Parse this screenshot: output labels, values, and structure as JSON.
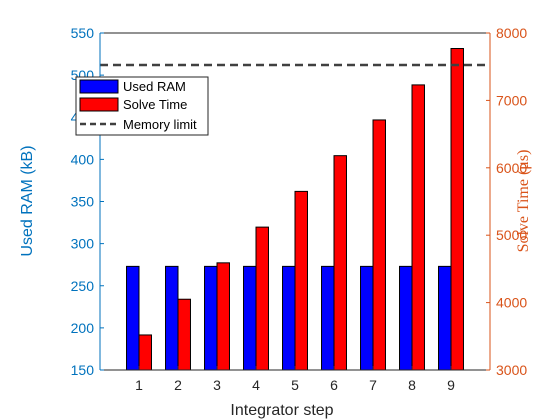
{
  "chart_data": {
    "type": "bar",
    "categories": [
      "1",
      "2",
      "3",
      "4",
      "5",
      "6",
      "7",
      "8",
      "9"
    ],
    "xlabel": "Integrator step",
    "ylabel_left": "Used RAM (kB)",
    "ylabel_right": "Solve Time (μs)",
    "ylim_left": [
      150,
      550
    ],
    "ylim_right": [
      3000,
      8000
    ],
    "yticks_left": [
      "150",
      "200",
      "250",
      "300",
      "350",
      "400",
      "450",
      "500",
      "550"
    ],
    "yticks_right": [
      "3000",
      "4000",
      "5000",
      "6000",
      "7000",
      "8000"
    ],
    "grid": false,
    "legend_position": "top-left",
    "series": [
      {
        "name": "Used RAM",
        "axis": "left",
        "color": "#0000ff",
        "values": [
          273,
          273,
          273,
          273,
          273,
          273,
          273,
          273,
          273
        ]
      },
      {
        "name": "Solve Time",
        "axis": "right",
        "color": "#ff0000",
        "values": [
          3520,
          4050,
          4590,
          5120,
          5650,
          6180,
          6710,
          7230,
          7770
        ]
      }
    ],
    "reference_line": {
      "name": "Memory limit",
      "axis": "left",
      "value": 512,
      "style": "dashed",
      "color": "#404040"
    },
    "colors": {
      "left_axis": "#0072bd",
      "right_axis": "#d95319"
    }
  }
}
